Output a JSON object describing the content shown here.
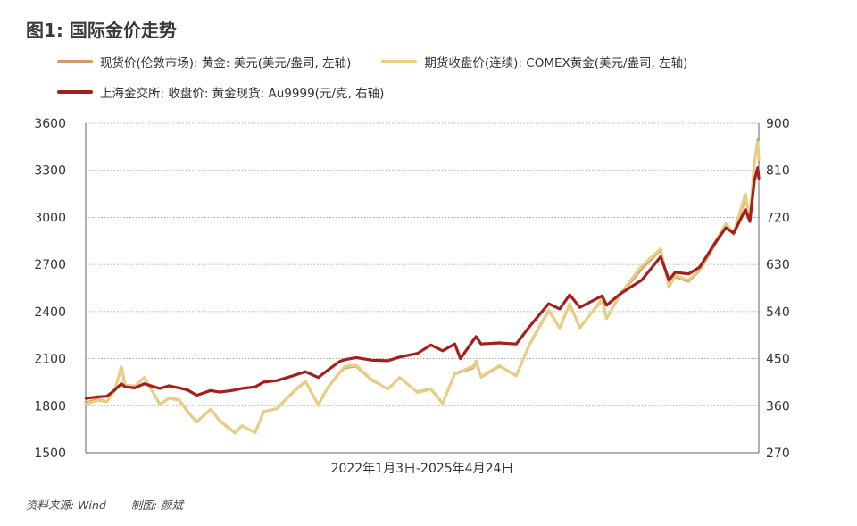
{
  "title": "图1: 国际金价走势",
  "legend": [
    {
      "label": "现货价(伦敦市场): 黄金: 美元(美元/盎司, 左轴)",
      "color": "#d19a6a"
    },
    {
      "label": "期货收盘价(连续): COMEX黄金(美元/盎司, 左轴)",
      "color": "#e8cd82"
    },
    {
      "label": "上海金交所: 收盘价: 黄金现货: Au9999(元/克, 右轴)",
      "color": "#a3201e"
    }
  ],
  "footer": {
    "source": "资料来源: Wind",
    "author": "制图: 颜斌"
  },
  "chart_data": {
    "type": "line",
    "xlabel": "2022年1月3日-2025年4月24日",
    "x_range": [
      "2022-01-03",
      "2025-04-24"
    ],
    "left_axis": {
      "ylim": [
        1500,
        3600
      ],
      "ticks": [
        1500,
        1800,
        2100,
        2400,
        2700,
        3000,
        3300,
        3600
      ]
    },
    "right_axis": {
      "ylim": [
        270,
        900
      ],
      "ticks": [
        270,
        360,
        450,
        540,
        630,
        720,
        810,
        900
      ]
    },
    "grid": true,
    "legend_position": "top",
    "series": [
      {
        "name": "现货价(伦敦市场): 黄金: 美元(美元/盎司, 左轴)",
        "axis": "left",
        "color": "#d19a6a",
        "points": [
          [
            "2022-01-03",
            1820
          ],
          [
            "2022-01-25",
            1843
          ],
          [
            "2022-02-10",
            1828
          ],
          [
            "2022-02-24",
            1905
          ],
          [
            "2022-03-08",
            2040
          ],
          [
            "2022-03-15",
            1930
          ],
          [
            "2022-04-01",
            1928
          ],
          [
            "2022-04-18",
            1975
          ],
          [
            "2022-05-06",
            1875
          ],
          [
            "2022-05-16",
            1812
          ],
          [
            "2022-06-01",
            1850
          ],
          [
            "2022-06-20",
            1840
          ],
          [
            "2022-07-05",
            1765
          ],
          [
            "2022-07-21",
            1700
          ],
          [
            "2022-08-15",
            1780
          ],
          [
            "2022-08-31",
            1710
          ],
          [
            "2022-09-15",
            1665
          ],
          [
            "2022-09-28",
            1630
          ],
          [
            "2022-10-10",
            1675
          ],
          [
            "2022-11-03",
            1630
          ],
          [
            "2022-11-18",
            1765
          ],
          [
            "2022-12-12",
            1780
          ],
          [
            "2023-01-12",
            1890
          ],
          [
            "2023-02-01",
            1950
          ],
          [
            "2023-02-24",
            1810
          ],
          [
            "2023-03-13",
            1910
          ],
          [
            "2023-04-04",
            2010
          ],
          [
            "2023-04-13",
            2040
          ],
          [
            "2023-05-03",
            2050
          ],
          [
            "2023-05-31",
            1960
          ],
          [
            "2023-06-29",
            1910
          ],
          [
            "2023-07-20",
            1975
          ],
          [
            "2023-08-21",
            1890
          ],
          [
            "2023-09-14",
            1910
          ],
          [
            "2023-10-05",
            1820
          ],
          [
            "2023-10-27",
            2000
          ],
          [
            "2023-11-29",
            2040
          ],
          [
            "2023-12-04",
            2070
          ],
          [
            "2023-12-13",
            1980
          ],
          [
            "2024-01-15",
            2050
          ],
          [
            "2024-02-14",
            1995
          ],
          [
            "2024-03-08",
            2180
          ],
          [
            "2024-04-12",
            2400
          ],
          [
            "2024-05-02",
            2300
          ],
          [
            "2024-05-20",
            2440
          ],
          [
            "2024-06-07",
            2300
          ],
          [
            "2024-07-17",
            2470
          ],
          [
            "2024-07-25",
            2360
          ],
          [
            "2024-08-20",
            2510
          ],
          [
            "2024-09-26",
            2670
          ],
          [
            "2024-10-30",
            2790
          ],
          [
            "2024-11-14",
            2560
          ],
          [
            "2024-11-25",
            2620
          ],
          [
            "2024-12-19",
            2590
          ],
          [
            "2025-01-08",
            2660
          ],
          [
            "2025-02-04",
            2820
          ],
          [
            "2025-02-24",
            2950
          ],
          [
            "2025-03-10",
            2890
          ],
          [
            "2025-03-31",
            3120
          ],
          [
            "2025-04-08",
            2980
          ],
          [
            "2025-04-16",
            3340
          ],
          [
            "2025-04-22",
            3500
          ],
          [
            "2025-04-24",
            3350
          ]
        ]
      },
      {
        "name": "期货收盘价(连续): COMEX黄金(美元/盎司, 左轴)",
        "axis": "left",
        "color": "#e8cd82",
        "points": [
          [
            "2022-01-03",
            1810
          ],
          [
            "2022-01-25",
            1835
          ],
          [
            "2022-02-10",
            1825
          ],
          [
            "2022-02-24",
            1900
          ],
          [
            "2022-03-08",
            2050
          ],
          [
            "2022-03-15",
            1925
          ],
          [
            "2022-04-01",
            1922
          ],
          [
            "2022-04-18",
            1980
          ],
          [
            "2022-05-06",
            1870
          ],
          [
            "2022-05-16",
            1808
          ],
          [
            "2022-06-01",
            1848
          ],
          [
            "2022-06-20",
            1835
          ],
          [
            "2022-07-05",
            1760
          ],
          [
            "2022-07-21",
            1695
          ],
          [
            "2022-08-15",
            1778
          ],
          [
            "2022-08-31",
            1705
          ],
          [
            "2022-09-15",
            1660
          ],
          [
            "2022-09-28",
            1625
          ],
          [
            "2022-10-10",
            1672
          ],
          [
            "2022-11-03",
            1628
          ],
          [
            "2022-11-18",
            1762
          ],
          [
            "2022-12-12",
            1782
          ],
          [
            "2023-01-12",
            1895
          ],
          [
            "2023-02-01",
            1955
          ],
          [
            "2023-02-24",
            1805
          ],
          [
            "2023-03-13",
            1915
          ],
          [
            "2023-04-04",
            2015
          ],
          [
            "2023-04-13",
            2050
          ],
          [
            "2023-05-03",
            2058
          ],
          [
            "2023-05-31",
            1965
          ],
          [
            "2023-06-29",
            1905
          ],
          [
            "2023-07-20",
            1980
          ],
          [
            "2023-08-21",
            1885
          ],
          [
            "2023-09-14",
            1905
          ],
          [
            "2023-10-05",
            1815
          ],
          [
            "2023-10-27",
            2005
          ],
          [
            "2023-11-29",
            2050
          ],
          [
            "2023-12-04",
            2085
          ],
          [
            "2023-12-13",
            1985
          ],
          [
            "2024-01-15",
            2055
          ],
          [
            "2024-02-14",
            1990
          ],
          [
            "2024-03-08",
            2185
          ],
          [
            "2024-04-12",
            2410
          ],
          [
            "2024-05-02",
            2295
          ],
          [
            "2024-05-20",
            2450
          ],
          [
            "2024-06-07",
            2295
          ],
          [
            "2024-07-17",
            2480
          ],
          [
            "2024-07-25",
            2355
          ],
          [
            "2024-08-20",
            2520
          ],
          [
            "2024-09-26",
            2690
          ],
          [
            "2024-10-30",
            2800
          ],
          [
            "2024-11-14",
            2555
          ],
          [
            "2024-11-25",
            2630
          ],
          [
            "2024-12-19",
            2600
          ],
          [
            "2025-01-08",
            2670
          ],
          [
            "2025-02-04",
            2840
          ],
          [
            "2025-02-24",
            2960
          ],
          [
            "2025-03-10",
            2900
          ],
          [
            "2025-03-31",
            3150
          ],
          [
            "2025-04-08",
            2990
          ],
          [
            "2025-04-16",
            3350
          ],
          [
            "2025-04-22",
            3480
          ],
          [
            "2025-04-24",
            3370
          ]
        ]
      },
      {
        "name": "上海金交所: 收盘价: 黄金现货: Au9999(元/克, 右轴)",
        "axis": "right",
        "color": "#a3201e",
        "points": [
          [
            "2022-01-04",
            374
          ],
          [
            "2022-01-25",
            377
          ],
          [
            "2022-02-10",
            378
          ],
          [
            "2022-02-24",
            390
          ],
          [
            "2022-03-08",
            402
          ],
          [
            "2022-03-15",
            396
          ],
          [
            "2022-04-01",
            394
          ],
          [
            "2022-04-18",
            402
          ],
          [
            "2022-05-06",
            396
          ],
          [
            "2022-05-16",
            393
          ],
          [
            "2022-06-01",
            398
          ],
          [
            "2022-06-20",
            394
          ],
          [
            "2022-07-05",
            390
          ],
          [
            "2022-07-21",
            380
          ],
          [
            "2022-08-15",
            389
          ],
          [
            "2022-08-31",
            386
          ],
          [
            "2022-09-15",
            388
          ],
          [
            "2022-09-28",
            390
          ],
          [
            "2022-10-10",
            393
          ],
          [
            "2022-11-03",
            396
          ],
          [
            "2022-11-18",
            405
          ],
          [
            "2022-12-12",
            408
          ],
          [
            "2023-01-12",
            418
          ],
          [
            "2023-02-01",
            425
          ],
          [
            "2023-02-24",
            414
          ],
          [
            "2023-03-13",
            428
          ],
          [
            "2023-04-04",
            445
          ],
          [
            "2023-04-13",
            448
          ],
          [
            "2023-05-03",
            452
          ],
          [
            "2023-05-31",
            447
          ],
          [
            "2023-06-29",
            446
          ],
          [
            "2023-07-20",
            453
          ],
          [
            "2023-08-21",
            460
          ],
          [
            "2023-09-14",
            476
          ],
          [
            "2023-10-05",
            465
          ],
          [
            "2023-10-27",
            478
          ],
          [
            "2023-11-06",
            450
          ],
          [
            "2023-11-29",
            485
          ],
          [
            "2023-12-04",
            492
          ],
          [
            "2023-12-13",
            478
          ],
          [
            "2024-01-15",
            480
          ],
          [
            "2024-02-14",
            478
          ],
          [
            "2024-03-08",
            510
          ],
          [
            "2024-04-12",
            555
          ],
          [
            "2024-05-02",
            545
          ],
          [
            "2024-05-20",
            572
          ],
          [
            "2024-06-07",
            548
          ],
          [
            "2024-07-17",
            570
          ],
          [
            "2024-07-25",
            552
          ],
          [
            "2024-08-20",
            575
          ],
          [
            "2024-09-26",
            600
          ],
          [
            "2024-10-30",
            645
          ],
          [
            "2024-11-14",
            600
          ],
          [
            "2024-11-25",
            615
          ],
          [
            "2024-12-19",
            612
          ],
          [
            "2025-01-08",
            625
          ],
          [
            "2025-02-04",
            670
          ],
          [
            "2025-02-24",
            700
          ],
          [
            "2025-03-10",
            690
          ],
          [
            "2025-03-31",
            735
          ],
          [
            "2025-04-08",
            712
          ],
          [
            "2025-04-16",
            790
          ],
          [
            "2025-04-22",
            815
          ],
          [
            "2025-04-24",
            795
          ]
        ]
      }
    ]
  }
}
